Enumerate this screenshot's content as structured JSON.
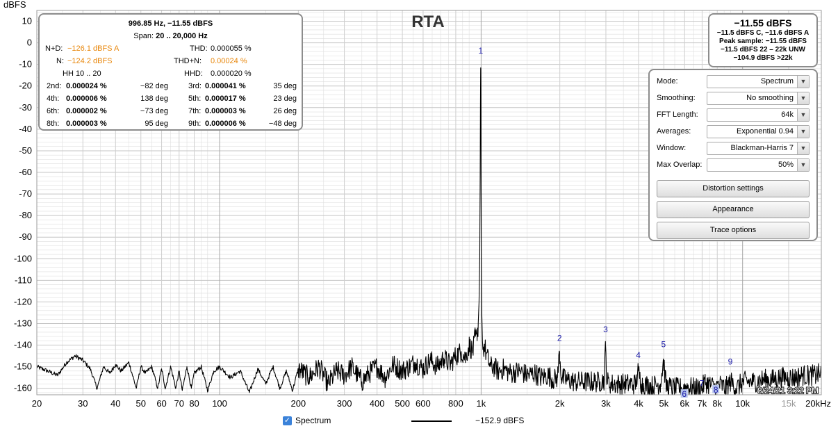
{
  "chart_data": {
    "type": "line",
    "title": "RTA",
    "ylabel": "dBFS",
    "xlabel": "",
    "x_scale": "log",
    "xlim": [
      20,
      20000
    ],
    "ylim": [
      -163,
      15
    ],
    "grid": true,
    "y_ticks": [
      10,
      0,
      -10,
      -20,
      -30,
      -40,
      -50,
      -60,
      -70,
      -80,
      -90,
      -100,
      -110,
      -120,
      -130,
      -140,
      -150,
      -160
    ],
    "x_ticks": [
      {
        "label": "20",
        "value": 20
      },
      {
        "label": "30",
        "value": 30
      },
      {
        "label": "40",
        "value": 40
      },
      {
        "label": "50",
        "value": 50
      },
      {
        "label": "60",
        "value": 60
      },
      {
        "label": "70",
        "value": 70
      },
      {
        "label": "80",
        "value": 80
      },
      {
        "label": "100",
        "value": 100
      },
      {
        "label": "200",
        "value": 200
      },
      {
        "label": "300",
        "value": 300
      },
      {
        "label": "400",
        "value": 400
      },
      {
        "label": "500",
        "value": 500
      },
      {
        "label": "600",
        "value": 600
      },
      {
        "label": "800",
        "value": 800
      },
      {
        "label": "1k",
        "value": 1000
      },
      {
        "label": "2k",
        "value": 2000
      },
      {
        "label": "3k",
        "value": 3000
      },
      {
        "label": "4k",
        "value": 4000
      },
      {
        "label": "5k",
        "value": 5000
      },
      {
        "label": "6k",
        "value": 6000
      },
      {
        "label": "7k",
        "value": 7000
      },
      {
        "label": "8k",
        "value": 8000
      },
      {
        "label": "10k",
        "value": 10000
      },
      {
        "label": "15k",
        "value": 15000,
        "light": true
      },
      {
        "label": "20kHz",
        "value": 20000
      }
    ],
    "series": [
      {
        "name": "Spectrum",
        "value_label": "-152.9 dBFS",
        "x": [
          20,
          22,
          24,
          26,
          28,
          30,
          32,
          34,
          36,
          38,
          40,
          42,
          45,
          48,
          50,
          52,
          55,
          58,
          60,
          62,
          65,
          68,
          70,
          72,
          75,
          78,
          80,
          85,
          90,
          95,
          100,
          110,
          120,
          130,
          140,
          150,
          160,
          170,
          180,
          190,
          200,
          220,
          240,
          260,
          280,
          300,
          320,
          350,
          380,
          400,
          430,
          460,
          500,
          530,
          560,
          600,
          640,
          680,
          720,
          760,
          800,
          840,
          870,
          900,
          930,
          950,
          965,
          975,
          982,
          988,
          992,
          994,
          996,
          997,
          998,
          999,
          1000,
          1002,
          1006,
          1012,
          1020,
          1030,
          1045,
          1065,
          1090,
          1120,
          1160,
          1220,
          1300,
          1400,
          1500,
          1600,
          1700,
          1800,
          1900,
          1960,
          1994,
          2028,
          2100,
          2300,
          2600,
          2850,
          2960,
          2991,
          3030,
          3150,
          3500,
          3900,
          3990,
          4100,
          4500,
          4850,
          4984,
          5100,
          5500,
          5980,
          6100,
          6500,
          6980,
          7200,
          7900,
          8100,
          8600,
          9000,
          9500,
          10000,
          11000,
          12000,
          13000,
          14000,
          15000,
          16000,
          17000,
          18000,
          19000,
          20000
        ],
        "values": [
          -150,
          -152,
          -154,
          -148,
          -145,
          -147,
          -151,
          -160,
          -150,
          -153,
          -149,
          -152,
          -148,
          -160,
          -150,
          -153,
          -150,
          -160,
          -151,
          -160,
          -150,
          -160,
          -152,
          -161,
          -150,
          -160,
          -153,
          -150,
          -161,
          -152,
          -150,
          -155,
          -152,
          -162,
          -151,
          -158,
          -150,
          -160,
          -152,
          -161,
          -151,
          -155,
          -150,
          -158,
          -152,
          -154,
          -150,
          -157,
          -152,
          -150,
          -155,
          -149,
          -152,
          -150,
          -148,
          -151,
          -147,
          -150,
          -146,
          -149,
          -145,
          -143,
          -146,
          -140,
          -143,
          -136,
          -138,
          -130,
          -120,
          -100,
          -60,
          -30,
          -12,
          -11.55,
          -12,
          -25,
          -60,
          -100,
          -125,
          -138,
          -142,
          -140,
          -144,
          -147,
          -150,
          -150,
          -152,
          -151,
          -153,
          -152,
          -154,
          -153,
          -155,
          -154,
          -156,
          -155,
          -143,
          -155,
          -156,
          -157,
          -157,
          -157,
          -156,
          -140,
          -157,
          -158,
          -158,
          -158,
          -152,
          -158,
          -159,
          -158,
          -147,
          -159,
          -160,
          -160,
          -159,
          -160,
          -160,
          -157,
          -160,
          -158,
          -160,
          -157,
          -160,
          -157,
          -157,
          -156,
          -156,
          -155,
          -155,
          -155,
          -154,
          -154,
          -154,
          -153
        ]
      }
    ],
    "annotations": [
      {
        "text": "1",
        "x": 997,
        "y": -5
      },
      {
        "text": "2",
        "x": 1994,
        "y": -138
      },
      {
        "text": "3",
        "x": 2991,
        "y": -134
      },
      {
        "text": "4",
        "x": 3990,
        "y": -146
      },
      {
        "text": "5",
        "x": 4984,
        "y": -141
      },
      {
        "text": "6",
        "x": 5980,
        "y": -164,
        "boxed": true
      },
      {
        "text": "7",
        "x": 6980,
        "y": -159
      },
      {
        "text": "8",
        "x": 7900,
        "y": -162,
        "boxed": true
      },
      {
        "text": "9",
        "x": 8970,
        "y": -149
      }
    ],
    "timestamp": "8/24/21 3:22 PM"
  },
  "stats": {
    "header": "996.85 Hz, −11.55 dBFS",
    "span_label": "Span:",
    "span_value": "20 .. 20,000 Hz",
    "nd_label": "N+D:",
    "nd_value": "−126.1 dBFS A",
    "thd_label": "THD:",
    "thd_value": "0.000055 %",
    "n_label": "N:",
    "n_value": "−124.2 dBFS",
    "thdn_label": "THD+N:",
    "thdn_value": "0.00024 %",
    "hh_label": "HH 10 .. 20",
    "hhd_label": "HHD:",
    "hhd_value": "0.000020 %",
    "harmonics": [
      {
        "a_label": "2nd:",
        "a_value": "0.000024 %",
        "a_phase": "−82 deg",
        "b_label": "3rd:",
        "b_value": "0.000041 %",
        "b_phase": "35 deg"
      },
      {
        "a_label": "4th:",
        "a_value": "0.000006 %",
        "a_phase": "138 deg",
        "b_label": "5th:",
        "b_value": "0.000017 %",
        "b_phase": "23 deg"
      },
      {
        "a_label": "6th:",
        "a_value": "0.000002 %",
        "a_phase": "−73 deg",
        "b_label": "7th:",
        "b_value": "0.000003 %",
        "b_phase": "26 deg"
      },
      {
        "a_label": "8th:",
        "a_value": "0.000003 %",
        "a_phase": "95 deg",
        "b_label": "9th:",
        "b_value": "0.000006 %",
        "b_phase": "−48 deg"
      }
    ]
  },
  "level": {
    "main": "−11.55 dBFS",
    "line1": "−11.5 dBFS C, −11.6 dBFS A",
    "line2": "Peak sample: −11.55 dBFS",
    "line3": "−11.5 dBFS 22 – 22k UNW",
    "line4": "−104.9 dBFS >22k"
  },
  "settings": {
    "mode": {
      "label": "Mode:",
      "value": "Spectrum"
    },
    "smoothing": {
      "label": "Smoothing:",
      "value": "No  smoothing"
    },
    "fft": {
      "label": "FFT Length:",
      "value": "64k"
    },
    "averages": {
      "label": "Averages:",
      "value": "Exponential 0.94"
    },
    "window": {
      "label": "Window:",
      "value": "Blackman-Harris 7"
    },
    "overlap": {
      "label": "Max Overlap:",
      "value": "50%"
    },
    "btn_distortion": "Distortion settings",
    "btn_appearance": "Appearance",
    "btn_trace": "Trace options"
  },
  "legend": {
    "checkbox_glyph": "✓",
    "name": "Spectrum",
    "value": "−152.9 dBFS"
  },
  "colors": {
    "trace": "#000000",
    "grid_major": "#a6a6a6",
    "grid_minor": "#dedede",
    "harmonic_label": "#1a1aa8",
    "warn": "#e8860a"
  }
}
